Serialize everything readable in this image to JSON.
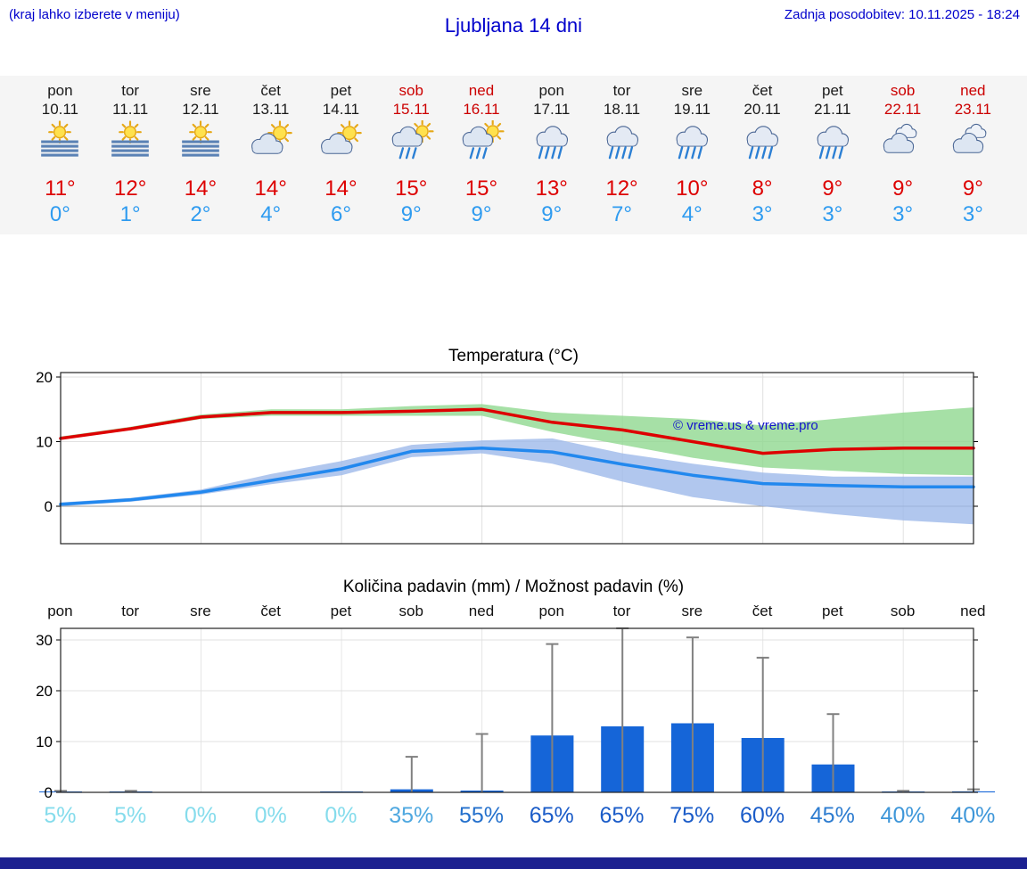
{
  "header": {
    "hint": "(kraj lahko izberete v meniju)",
    "title": "Ljubljana 14 dni",
    "updated": "Zadnja posodobitev: 10.11.2025 - 18:24"
  },
  "colors": {
    "accent_blue": "#0000cc",
    "high_temp": "#dd0000",
    "low_temp": "#2e9bf0",
    "weekend": "#cc0000",
    "footer_bar": "#1c2190",
    "strip_background": "#f5f5f5"
  },
  "forecast": {
    "days": [
      {
        "name": "pon",
        "date": "10.11",
        "weekend": false,
        "icon": "fog-sun",
        "high": "11°",
        "low": "0°"
      },
      {
        "name": "tor",
        "date": "11.11",
        "weekend": false,
        "icon": "fog-sun",
        "high": "12°",
        "low": "1°"
      },
      {
        "name": "sre",
        "date": "12.11",
        "weekend": false,
        "icon": "fog-sun",
        "high": "14°",
        "low": "2°"
      },
      {
        "name": "čet",
        "date": "13.11",
        "weekend": false,
        "icon": "partly-cloudy",
        "high": "14°",
        "low": "4°"
      },
      {
        "name": "pet",
        "date": "14.11",
        "weekend": false,
        "icon": "partly-cloudy",
        "high": "14°",
        "low": "6°"
      },
      {
        "name": "sob",
        "date": "15.11",
        "weekend": true,
        "icon": "showers",
        "high": "15°",
        "low": "9°"
      },
      {
        "name": "ned",
        "date": "16.11",
        "weekend": true,
        "icon": "showers",
        "high": "15°",
        "low": "9°"
      },
      {
        "name": "pon",
        "date": "17.11",
        "weekend": false,
        "icon": "rain",
        "high": "13°",
        "low": "9°"
      },
      {
        "name": "tor",
        "date": "18.11",
        "weekend": false,
        "icon": "rain",
        "high": "12°",
        "low": "7°"
      },
      {
        "name": "sre",
        "date": "19.11",
        "weekend": false,
        "icon": "rain",
        "high": "10°",
        "low": "4°"
      },
      {
        "name": "čet",
        "date": "20.11",
        "weekend": false,
        "icon": "rain",
        "high": "8°",
        "low": "3°"
      },
      {
        "name": "pet",
        "date": "21.11",
        "weekend": false,
        "icon": "rain",
        "high": "9°",
        "low": "3°"
      },
      {
        "name": "sob",
        "date": "22.11",
        "weekend": true,
        "icon": "cloudy",
        "high": "9°",
        "low": "3°"
      },
      {
        "name": "ned",
        "date": "23.11",
        "weekend": true,
        "icon": "cloudy",
        "high": "9°",
        "low": "3°"
      }
    ]
  },
  "chart_data": [
    {
      "type": "line",
      "title": "Temperatura (°C)",
      "x_labels": [
        "pon",
        "tor",
        "sre",
        "čet",
        "pet",
        "sob",
        "ned",
        "pon",
        "tor",
        "sre",
        "čet",
        "pet",
        "sob",
        "ned"
      ],
      "ylim": [
        -5.8,
        20.7
      ],
      "yticks": [
        0,
        10,
        20
      ],
      "grid": true,
      "watermark": "© vreme.us & vreme.pro",
      "series": [
        {
          "name": "min-temp",
          "color": "#2288ee",
          "values": [
            0.3,
            1,
            2.2,
            4,
            5.8,
            8.5,
            9,
            8.4,
            6.5,
            4.8,
            3.5,
            3.2,
            3,
            3
          ]
        },
        {
          "name": "max-temp",
          "color": "#dd0000",
          "values": [
            10.5,
            12,
            13.8,
            14.5,
            14.5,
            14.7,
            15,
            13,
            11.8,
            10,
            8.2,
            8.8,
            9,
            9
          ]
        }
      ],
      "bands": [
        {
          "name": "min-temp-range",
          "color": "#9db9ea",
          "upper": [
            0.6,
            1.3,
            2.6,
            5,
            7,
            9.5,
            10.2,
            10.5,
            8.2,
            6.6,
            5.2,
            4.6,
            4.6,
            4.6
          ],
          "lower": [
            0,
            0.7,
            1.8,
            3.4,
            4.8,
            7.6,
            8.2,
            6.6,
            3.8,
            1.4,
            0,
            -1.2,
            -2.2,
            -2.8
          ]
        },
        {
          "name": "max-temp-range",
          "color": "#90d890",
          "upper": [
            10.8,
            12.3,
            14.2,
            15,
            15,
            15.5,
            15.8,
            14.5,
            14,
            13.5,
            12.5,
            13.5,
            14.5,
            15.3
          ],
          "lower": [
            10.3,
            11.8,
            13.5,
            14,
            14,
            14,
            14,
            11.5,
            9.5,
            7.5,
            6,
            5.5,
            5,
            4.8
          ]
        }
      ]
    },
    {
      "type": "bar",
      "title": "Količina padavin (mm) / Možnost padavin (%)",
      "x_labels": [
        "pon",
        "tor",
        "sre",
        "čet",
        "pet",
        "sob",
        "ned",
        "pon",
        "tor",
        "sre",
        "čet",
        "pet",
        "sob",
        "ned"
      ],
      "ylim": [
        0,
        32.3
      ],
      "yticks": [
        0,
        10,
        20,
        30
      ],
      "ylabel_units": "mm",
      "bar_color": "#1565d8",
      "whisker_color": "#808080",
      "values": [
        0.1,
        0.15,
        0,
        0,
        0.05,
        0.6,
        0.35,
        11.2,
        13,
        13.6,
        10.7,
        5.5,
        0.15,
        0.2
      ],
      "whisker_max": [
        0.3,
        0.3,
        0,
        0.1,
        0.1,
        7,
        11.5,
        29.2,
        32.3,
        30.5,
        26.5,
        15.4,
        0.3,
        0.6
      ],
      "prob_labels": [
        {
          "text": "5%",
          "color": "#85dcec"
        },
        {
          "text": "5%",
          "color": "#85dcec"
        },
        {
          "text": "0%",
          "color": "#85dcec"
        },
        {
          "text": "0%",
          "color": "#85dcec"
        },
        {
          "text": "0%",
          "color": "#85dcec"
        },
        {
          "text": "35%",
          "color": "#4fa8e0"
        },
        {
          "text": "55%",
          "color": "#2470cc"
        },
        {
          "text": "65%",
          "color": "#1b5cc8"
        },
        {
          "text": "65%",
          "color": "#1b5cc8"
        },
        {
          "text": "75%",
          "color": "#1b5cc8"
        },
        {
          "text": "60%",
          "color": "#1b5cc8"
        },
        {
          "text": "45%",
          "color": "#2d7cd0"
        },
        {
          "text": "40%",
          "color": "#3f97d9"
        },
        {
          "text": "40%",
          "color": "#3f97d9"
        }
      ]
    }
  ]
}
